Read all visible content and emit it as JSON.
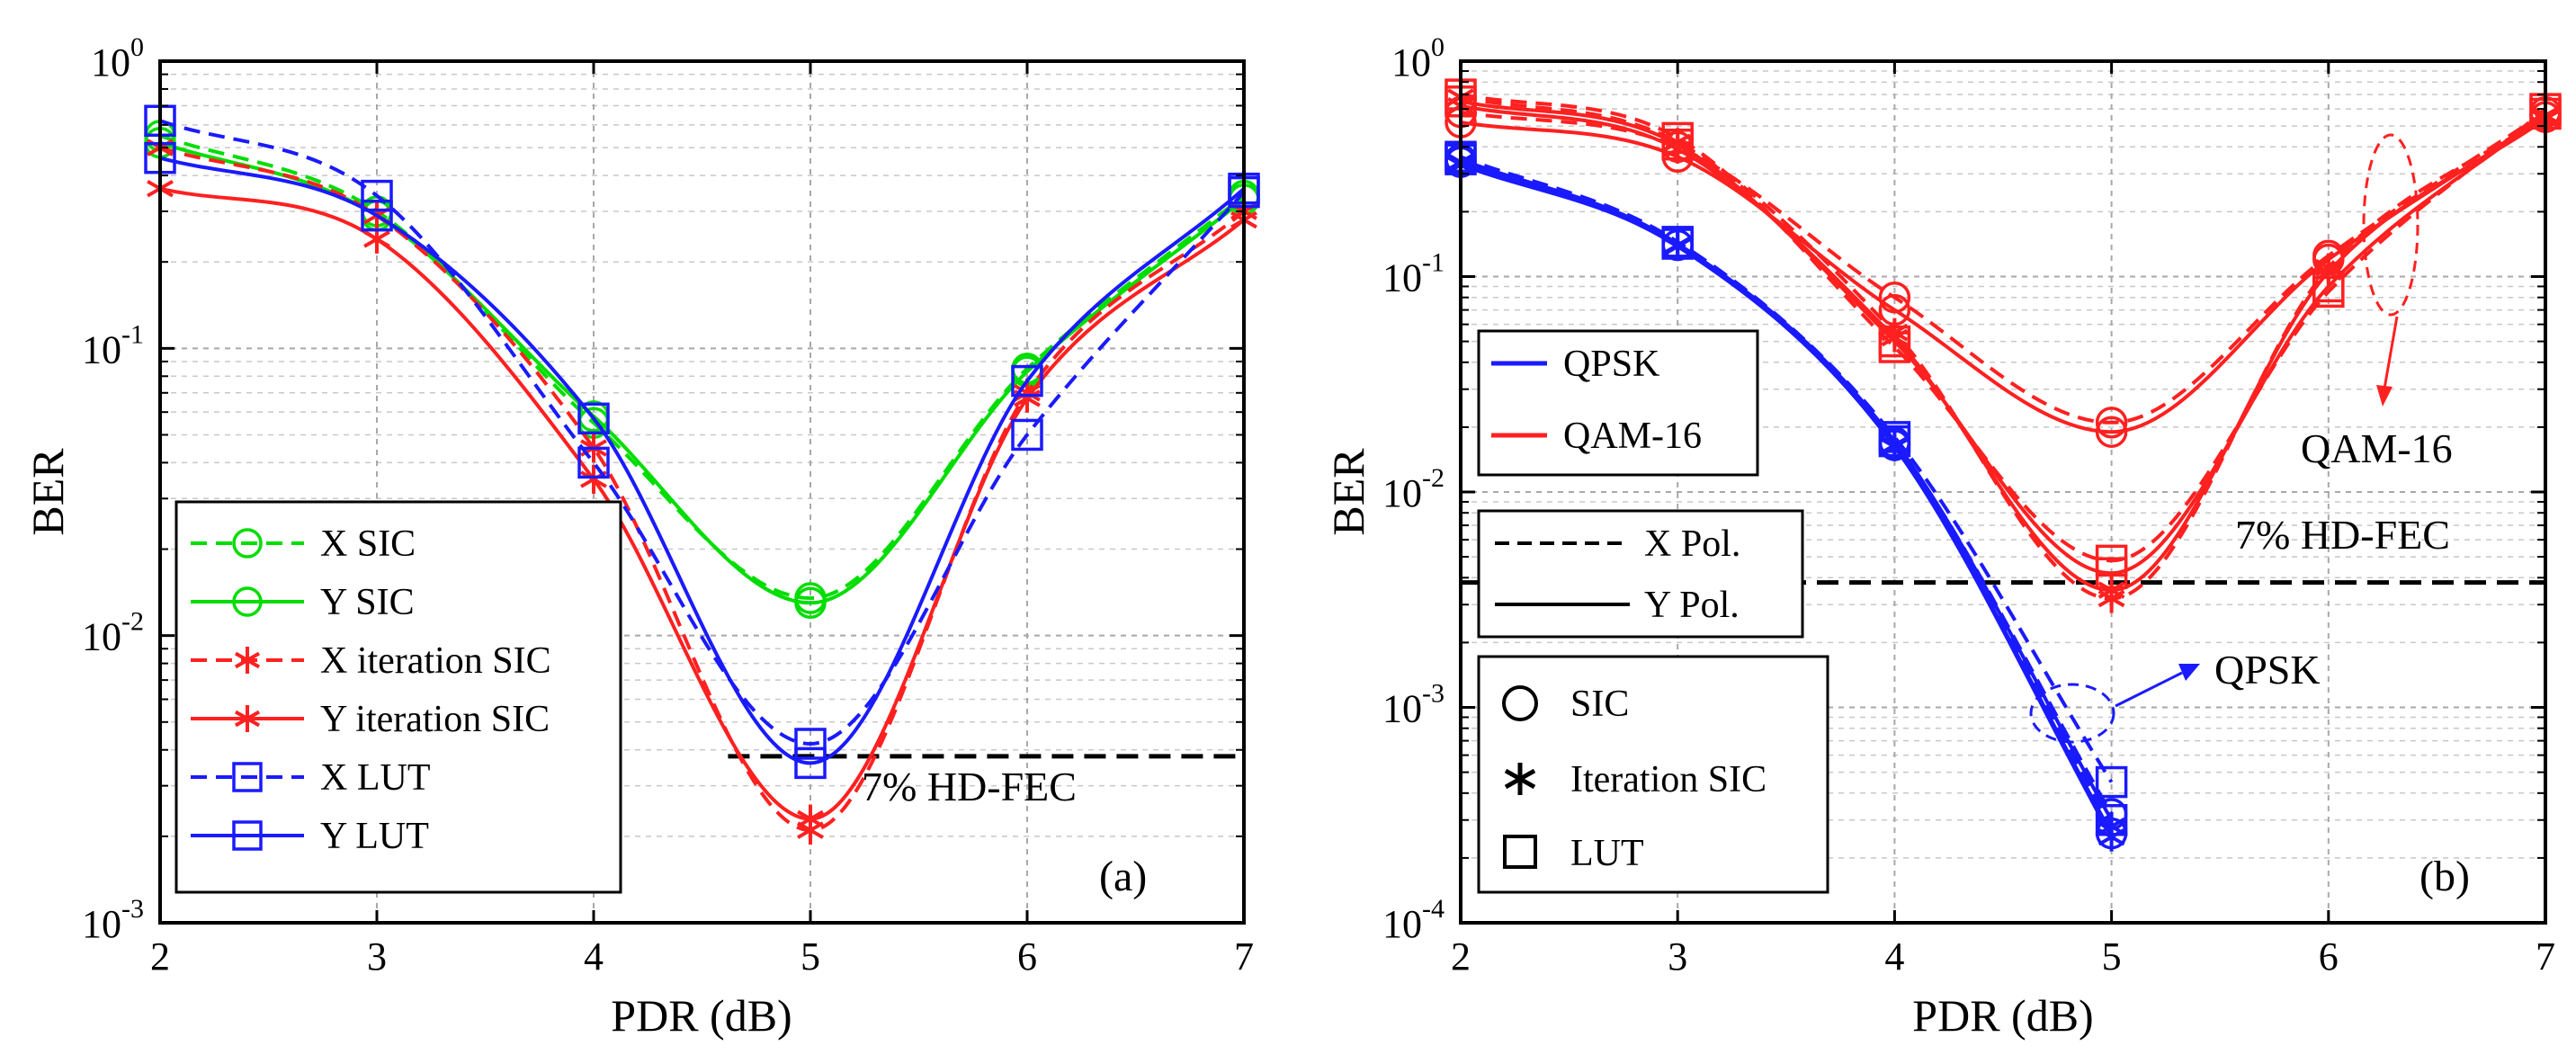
{
  "chart_data": [
    {
      "id": "a",
      "type": "line",
      "yscale": "log",
      "panel_label": "(a)",
      "xlabel": "PDR (dB)",
      "ylabel": "BER",
      "xlim": [
        2,
        7
      ],
      "ylim": [
        0.001,
        1
      ],
      "grid": true,
      "x_ticks": [
        "2",
        "3",
        "4",
        "5",
        "6",
        "7"
      ],
      "y_ticks": [
        {
          "base": "10",
          "exp": "-3"
        },
        {
          "base": "10",
          "exp": "-2"
        },
        {
          "base": "10",
          "exp": "-1"
        },
        {
          "base": "10",
          "exp": "0"
        }
      ],
      "threshold": {
        "value": 0.0038,
        "label": "7% HD-FEC"
      },
      "legend_position": "lower-left",
      "series": [
        {
          "name": "X SIC",
          "color": "#00dd00",
          "dash": "dashed",
          "marker": "circle",
          "x": [
            2,
            3,
            4,
            5,
            6,
            7
          ],
          "y": [
            0.55,
            0.3,
            0.055,
            0.0135,
            0.085,
            0.34
          ]
        },
        {
          "name": "Y SIC",
          "color": "#00dd00",
          "dash": "solid",
          "marker": "circle",
          "x": [
            2,
            3,
            4,
            5,
            6,
            7
          ],
          "y": [
            0.52,
            0.29,
            0.058,
            0.013,
            0.083,
            0.33
          ]
        },
        {
          "name": "X iteration SIC",
          "color": "#ff2020",
          "dash": "dashed",
          "marker": "asterisk",
          "x": [
            2,
            3,
            4,
            5,
            6,
            7
          ],
          "y": [
            0.5,
            0.29,
            0.045,
            0.0021,
            0.07,
            0.3
          ]
        },
        {
          "name": "Y iteration SIC",
          "color": "#ff2020",
          "dash": "solid",
          "marker": "asterisk",
          "x": [
            2,
            3,
            4,
            5,
            6,
            7
          ],
          "y": [
            0.36,
            0.24,
            0.035,
            0.0023,
            0.067,
            0.28
          ]
        },
        {
          "name": "X LUT",
          "color": "#1a1aff",
          "dash": "dashed",
          "marker": "square",
          "x": [
            2,
            3,
            4,
            5,
            6,
            7
          ],
          "y": [
            0.62,
            0.34,
            0.04,
            0.0042,
            0.05,
            0.35
          ]
        },
        {
          "name": "Y LUT",
          "color": "#1a1aff",
          "dash": "solid",
          "marker": "square",
          "x": [
            2,
            3,
            4,
            5,
            6,
            7
          ],
          "y": [
            0.46,
            0.29,
            0.057,
            0.0036,
            0.077,
            0.36
          ]
        }
      ]
    },
    {
      "id": "b",
      "type": "line",
      "yscale": "log",
      "panel_label": "(b)",
      "xlabel": "PDR (dB)",
      "ylabel": "BER",
      "xlim": [
        2,
        7
      ],
      "ylim": [
        0.0001,
        1
      ],
      "grid": true,
      "x_ticks": [
        "2",
        "3",
        "4",
        "5",
        "6",
        "7"
      ],
      "y_ticks": [
        {
          "base": "10",
          "exp": "-4"
        },
        {
          "base": "10",
          "exp": "-3"
        },
        {
          "base": "10",
          "exp": "-2"
        },
        {
          "base": "10",
          "exp": "-1"
        },
        {
          "base": "10",
          "exp": "0"
        }
      ],
      "threshold": {
        "value": 0.0038,
        "label": "7% HD-FEC"
      },
      "legend_modulation": [
        {
          "label": "QPSK",
          "color": "#1a1aff"
        },
        {
          "label": "QAM-16",
          "color": "#ff2020"
        }
      ],
      "legend_polarization": [
        {
          "label": "X Pol.",
          "dash": "dashed"
        },
        {
          "label": "Y Pol.",
          "dash": "solid"
        }
      ],
      "legend_method": [
        {
          "label": "SIC",
          "marker": "circle"
        },
        {
          "label": "Iteration SIC",
          "marker": "asterisk"
        },
        {
          "label": "LUT",
          "marker": "square"
        }
      ],
      "annotations": [
        {
          "text": "QAM-16",
          "color": "#ff2020"
        },
        {
          "text": "QPSK",
          "color": "#1a1aff"
        }
      ],
      "series": [
        {
          "name": "QPSK X SIC",
          "color": "#1a1aff",
          "dash": "dashed",
          "marker": "circle",
          "x": [
            2,
            3,
            4,
            5
          ],
          "y": [
            0.35,
            0.14,
            0.017,
            0.00032
          ]
        },
        {
          "name": "QPSK Y SIC",
          "color": "#1a1aff",
          "dash": "solid",
          "marker": "circle",
          "x": [
            2,
            3,
            4,
            5
          ],
          "y": [
            0.34,
            0.14,
            0.0165,
            0.00026
          ]
        },
        {
          "name": "QPSK X iteration SIC",
          "color": "#1a1aff",
          "dash": "dashed",
          "marker": "asterisk",
          "x": [
            2,
            3,
            4,
            5
          ],
          "y": [
            0.34,
            0.14,
            0.0165,
            0.00028
          ]
        },
        {
          "name": "QPSK Y iteration SIC",
          "color": "#1a1aff",
          "dash": "solid",
          "marker": "asterisk",
          "x": [
            2,
            3,
            4,
            5
          ],
          "y": [
            0.33,
            0.138,
            0.0162,
            0.00025
          ]
        },
        {
          "name": "QPSK X LUT",
          "color": "#1a1aff",
          "dash": "dashed",
          "marker": "square",
          "x": [
            2,
            3,
            4,
            5
          ],
          "y": [
            0.36,
            0.145,
            0.018,
            0.00045
          ]
        },
        {
          "name": "QPSK Y LUT",
          "color": "#1a1aff",
          "dash": "solid",
          "marker": "square",
          "x": [
            2,
            3,
            4,
            5
          ],
          "y": [
            0.35,
            0.142,
            0.0172,
            0.0003
          ]
        },
        {
          "name": "QAM-16 X SIC",
          "color": "#ff2020",
          "dash": "dashed",
          "marker": "circle",
          "x": [
            2,
            3,
            4,
            5,
            6,
            7
          ],
          "y": [
            0.58,
            0.4,
            0.08,
            0.021,
            0.125,
            0.58
          ]
        },
        {
          "name": "QAM-16 Y SIC",
          "color": "#ff2020",
          "dash": "solid",
          "marker": "circle",
          "x": [
            2,
            3,
            4,
            5,
            6,
            7
          ],
          "y": [
            0.52,
            0.36,
            0.07,
            0.019,
            0.12,
            0.55
          ]
        },
        {
          "name": "QAM-16 X iteration SIC",
          "color": "#ff2020",
          "dash": "dashed",
          "marker": "asterisk",
          "x": [
            2,
            3,
            4,
            5,
            6,
            7
          ],
          "y": [
            0.68,
            0.42,
            0.055,
            0.0032,
            0.11,
            0.56
          ]
        },
        {
          "name": "QAM-16 Y iteration SIC",
          "color": "#ff2020",
          "dash": "solid",
          "marker": "asterisk",
          "x": [
            2,
            3,
            4,
            5,
            6,
            7
          ],
          "y": [
            0.62,
            0.39,
            0.052,
            0.0035,
            0.105,
            0.54
          ]
        },
        {
          "name": "QAM-16 X LUT",
          "color": "#ff2020",
          "dash": "dashed",
          "marker": "square",
          "x": [
            2,
            3,
            4,
            5,
            6,
            7
          ],
          "y": [
            0.7,
            0.44,
            0.047,
            0.0048,
            0.085,
            0.6
          ]
        },
        {
          "name": "QAM-16 Y LUT",
          "color": "#ff2020",
          "dash": "solid",
          "marker": "square",
          "x": [
            2,
            3,
            4,
            5,
            6,
            7
          ],
          "y": [
            0.65,
            0.41,
            0.05,
            0.0042,
            0.09,
            0.57
          ]
        }
      ]
    }
  ]
}
